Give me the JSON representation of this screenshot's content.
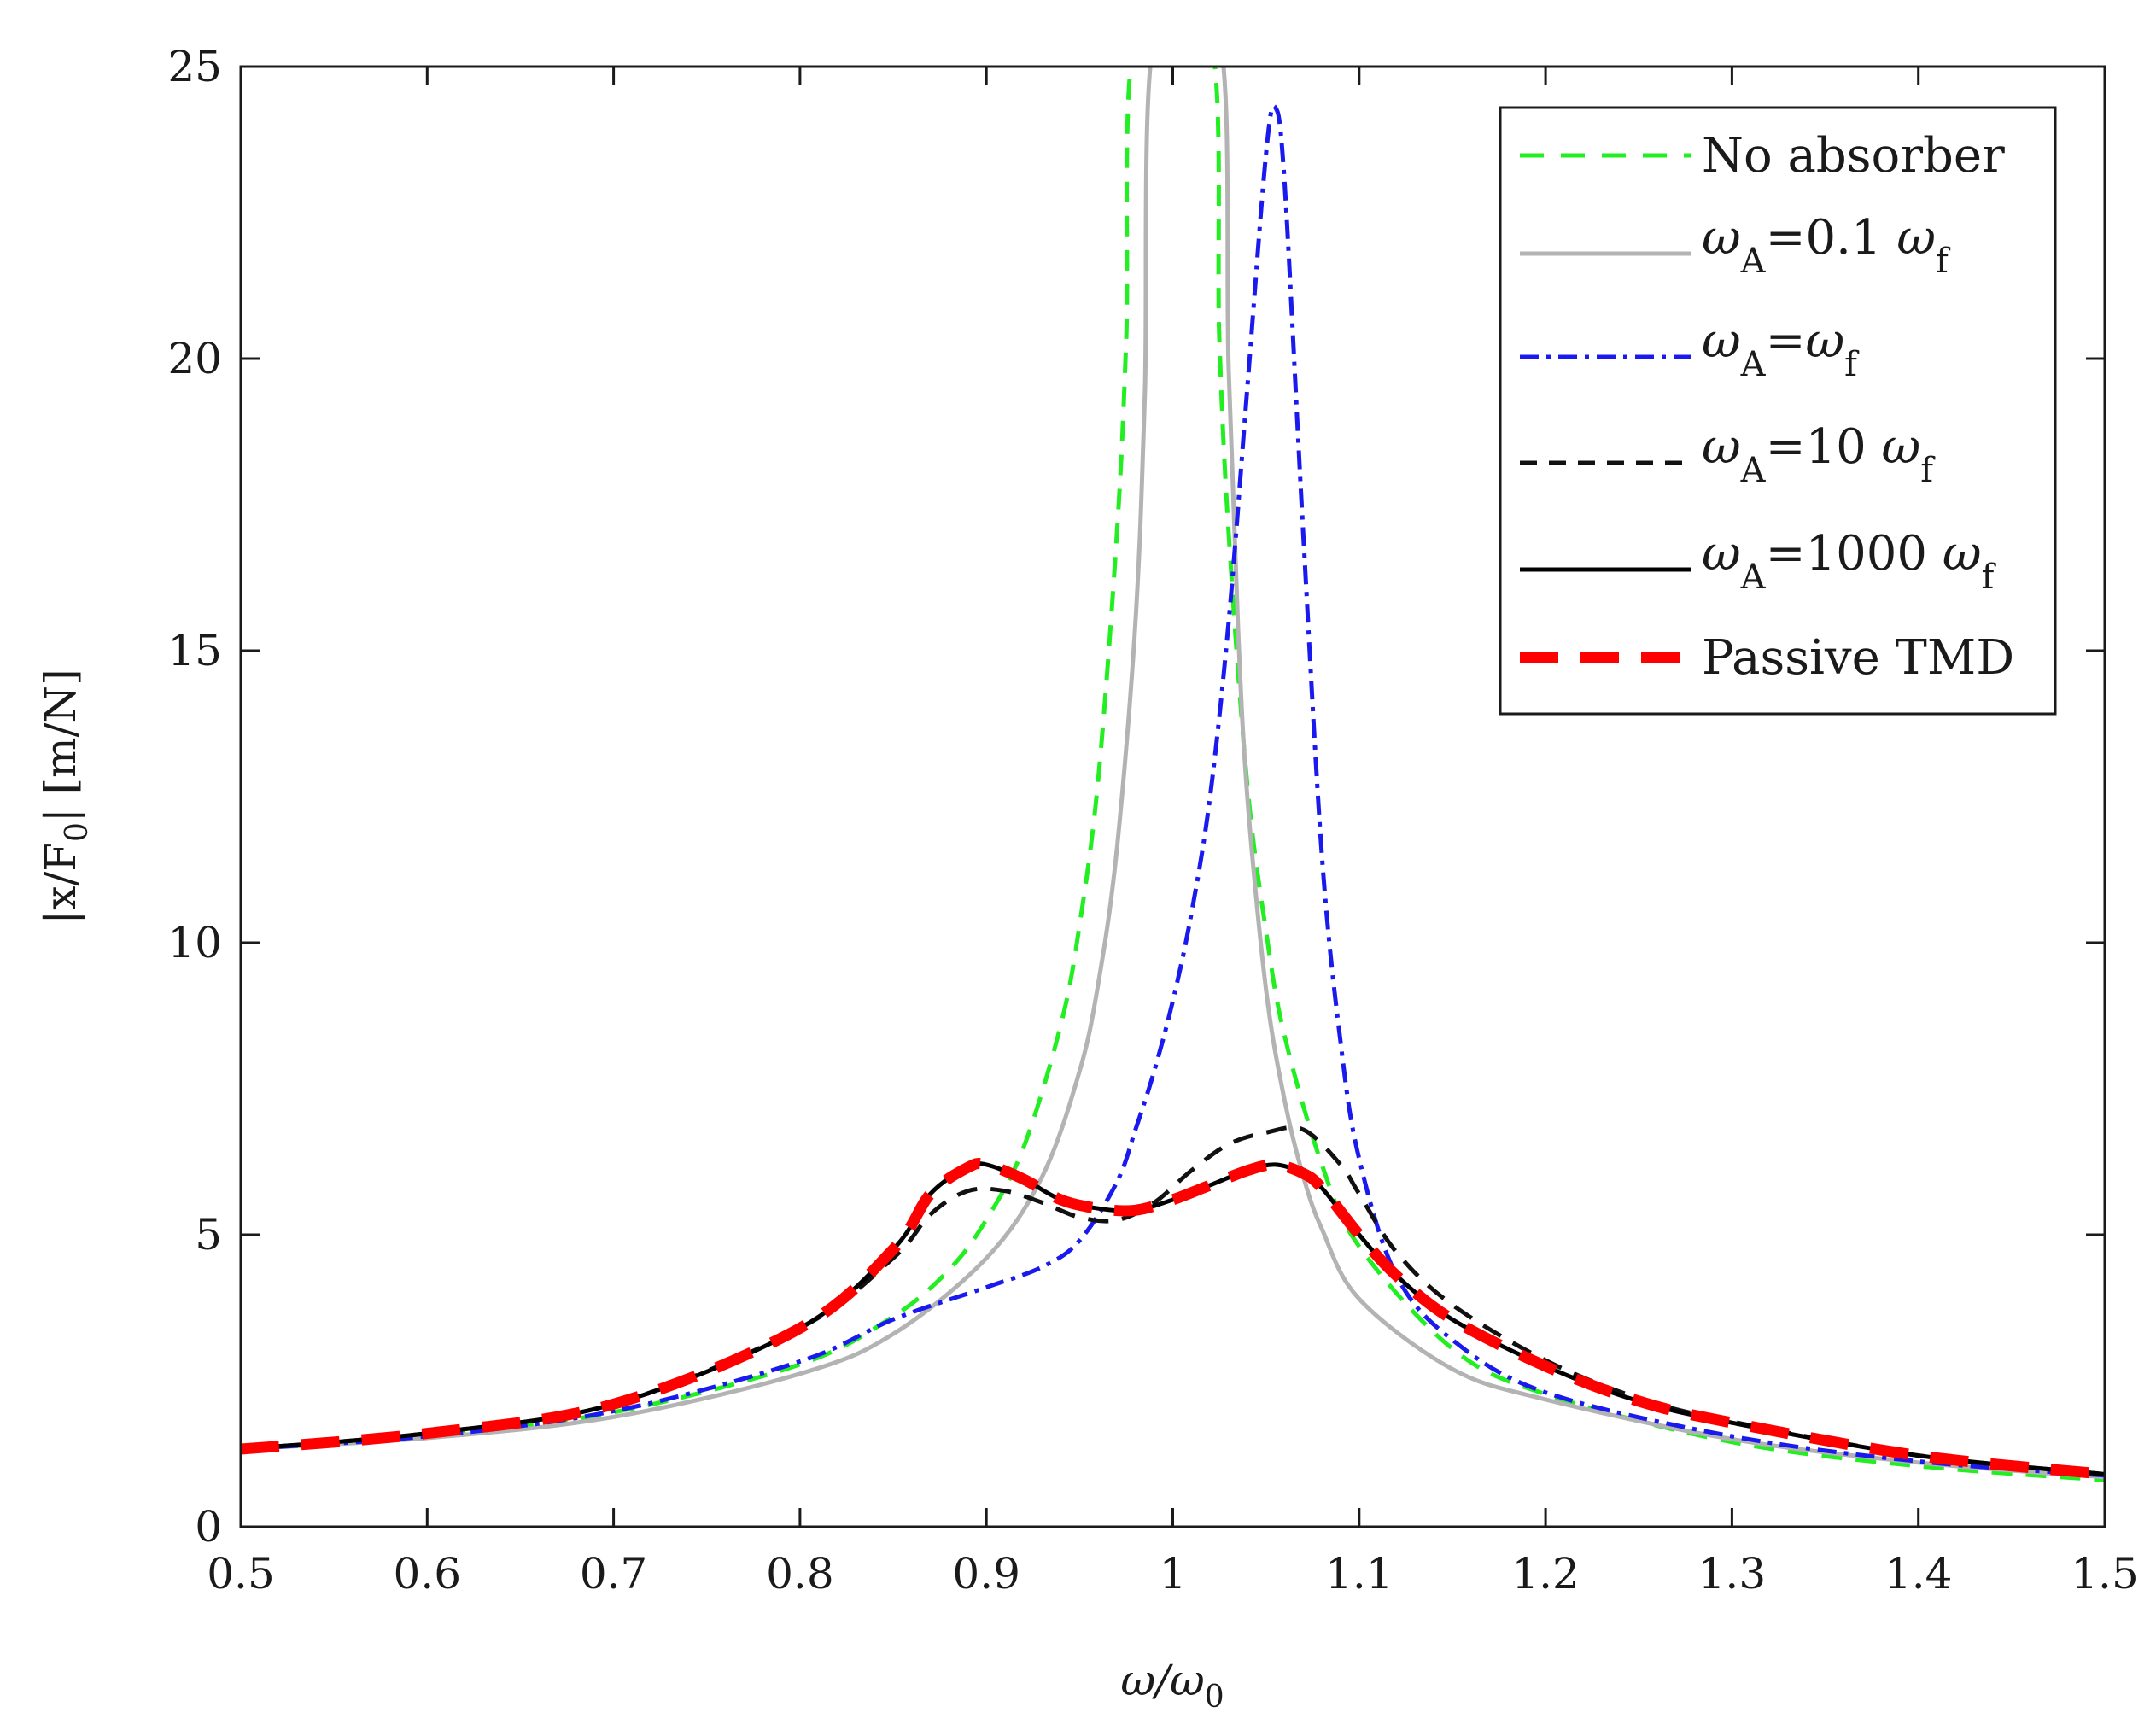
{
  "chart_data": {
    "type": "line",
    "title": "",
    "xlabel": {
      "base": "ω/ω",
      "sub": "0"
    },
    "ylabel": {
      "pre": "|x/F",
      "sub": "0",
      "post": "| [m/N]"
    },
    "xlim": [
      0.5,
      1.5
    ],
    "ylim": [
      0,
      25
    ],
    "xticks": [
      0.5,
      0.6,
      0.7,
      0.8,
      0.9,
      1.0,
      1.1,
      1.2,
      1.3,
      1.4,
      1.5
    ],
    "xtick_labels": [
      "0.5",
      "0.6",
      "0.7",
      "0.8",
      "0.9",
      "1",
      "1.1",
      "1.2",
      "1.3",
      "1.4",
      "1.5"
    ],
    "yticks": [
      0,
      5,
      10,
      15,
      20,
      25
    ],
    "ytick_labels": [
      "0",
      "5",
      "10",
      "15",
      "20",
      "25"
    ],
    "grid": false,
    "legend_position": "top-right",
    "series": [
      {
        "name": "No absorber",
        "legend": {
          "text": "No absorber"
        },
        "color": "#22ee22",
        "style": "dashed",
        "x": [
          0.5,
          0.6,
          0.7,
          0.8,
          0.85,
          0.88,
          0.9,
          0.92,
          0.94,
          0.95,
          0.96,
          0.97,
          0.975,
          0.98,
          1.02,
          1.025,
          1.03,
          1.04,
          1.05,
          1.06,
          1.08,
          1.1,
          1.15,
          1.2,
          1.3,
          1.4,
          1.5
        ],
        "y": [
          1.33,
          1.56,
          1.96,
          2.78,
          3.6,
          4.4,
          5.26,
          6.5,
          8.6,
          10.3,
          12.8,
          17.0,
          20.3,
          25.5,
          25.5,
          20.3,
          17.0,
          12.7,
          10.2,
          8.4,
          6.2,
          4.8,
          3.05,
          2.27,
          1.45,
          1.04,
          0.8
        ]
      },
      {
        "name": "ωA=0.1 ωf",
        "legend": {
          "w1": "ω",
          "s1": "A",
          "mid": "=0.1 ",
          "w2": "ω",
          "s2": "f"
        },
        "color": "#b3b3b3",
        "style": "solid",
        "x": [
          0.5,
          0.6,
          0.7,
          0.8,
          0.85,
          0.9,
          0.93,
          0.95,
          0.96,
          0.97,
          0.98,
          0.985,
          0.99,
          1.025,
          1.03,
          1.035,
          1.04,
          1.05,
          1.06,
          1.07,
          1.08,
          1.1,
          1.15,
          1.2,
          1.3,
          1.4,
          1.5
        ],
        "y": [
          1.33,
          1.52,
          1.88,
          2.62,
          3.3,
          4.6,
          6.0,
          7.8,
          9.3,
          11.6,
          15.5,
          19.4,
          25.5,
          25.5,
          19.8,
          15.4,
          12.5,
          9.2,
          7.3,
          6.0,
          5.1,
          3.9,
          2.7,
          2.18,
          1.5,
          1.1,
          0.85
        ]
      },
      {
        "name": "ωA=ωf",
        "legend": {
          "w1": "ω",
          "s1": "A",
          "mid": "=",
          "w2": "ω",
          "s2": "f"
        },
        "color": "#1a1aee",
        "style": "dashdot",
        "x": [
          0.5,
          0.6,
          0.7,
          0.8,
          0.85,
          0.9,
          0.93,
          0.95,
          0.97,
          0.98,
          0.99,
          1.0,
          1.01,
          1.02,
          1.03,
          1.04,
          1.05,
          1.055,
          1.06,
          1.07,
          1.08,
          1.09,
          1.1,
          1.12,
          1.15,
          1.2,
          1.3,
          1.4,
          1.5
        ],
        "y": [
          1.33,
          1.55,
          1.98,
          2.83,
          3.55,
          4.1,
          4.45,
          4.9,
          5.9,
          6.8,
          7.8,
          9.0,
          10.5,
          12.5,
          15.5,
          19.5,
          23.5,
          24.3,
          23.0,
          17.0,
          11.5,
          8.3,
          6.3,
          4.3,
          3.2,
          2.3,
          1.55,
          1.12,
          0.88
        ]
      },
      {
        "name": "ωA=10 ωf",
        "legend": {
          "w1": "ω",
          "s1": "A",
          "mid": "=10 ",
          "w2": "ω",
          "s2": "f"
        },
        "color": "#111111",
        "style": "dashed",
        "x": [
          0.5,
          0.6,
          0.7,
          0.8,
          0.85,
          0.87,
          0.89,
          0.91,
          0.93,
          0.95,
          0.97,
          0.99,
          1.01,
          1.03,
          1.05,
          1.07,
          1.09,
          1.1,
          1.12,
          1.15,
          1.2,
          1.25,
          1.3,
          1.4,
          1.5
        ],
        "y": [
          1.33,
          1.6,
          2.1,
          3.4,
          4.6,
          5.35,
          5.75,
          5.75,
          5.55,
          5.3,
          5.25,
          5.55,
          6.1,
          6.55,
          6.75,
          6.8,
          6.2,
          5.7,
          4.7,
          3.8,
          2.85,
          2.2,
          1.8,
          1.22,
          0.9
        ]
      },
      {
        "name": "ωA=1000 ωf",
        "legend": {
          "w1": "ω",
          "s1": "A",
          "mid": "=1000 ",
          "w2": "ω",
          "s2": "f"
        },
        "color": "#000000",
        "style": "solid",
        "x": [
          0.5,
          0.6,
          0.7,
          0.8,
          0.85,
          0.87,
          0.89,
          0.9,
          0.92,
          0.94,
          0.96,
          0.98,
          1.0,
          1.02,
          1.04,
          1.055,
          1.07,
          1.08,
          1.1,
          1.12,
          1.15,
          1.2,
          1.25,
          1.3,
          1.4,
          1.5
        ],
        "y": [
          1.33,
          1.6,
          2.1,
          3.4,
          4.75,
          5.7,
          6.15,
          6.2,
          5.95,
          5.6,
          5.45,
          5.42,
          5.6,
          5.85,
          6.1,
          6.2,
          6.05,
          5.8,
          5.0,
          4.3,
          3.55,
          2.75,
          2.15,
          1.78,
          1.22,
          0.9
        ]
      },
      {
        "name": "Passive TMD",
        "legend": {
          "text": "Passive TMD"
        },
        "color": "#ff0000",
        "style": "bigdashed",
        "x": [
          0.5,
          0.6,
          0.7,
          0.8,
          0.85,
          0.87,
          0.89,
          0.9,
          0.92,
          0.94,
          0.96,
          0.98,
          1.0,
          1.02,
          1.04,
          1.055,
          1.07,
          1.08,
          1.1,
          1.12,
          1.15,
          1.2,
          1.25,
          1.3,
          1.4,
          1.5
        ],
        "y": [
          1.33,
          1.6,
          2.1,
          3.4,
          4.75,
          5.7,
          6.15,
          6.2,
          5.95,
          5.6,
          5.45,
          5.42,
          5.6,
          5.85,
          6.1,
          6.2,
          6.05,
          5.8,
          5.0,
          4.3,
          3.55,
          2.75,
          2.15,
          1.78,
          1.22,
          0.9
        ]
      }
    ]
  }
}
